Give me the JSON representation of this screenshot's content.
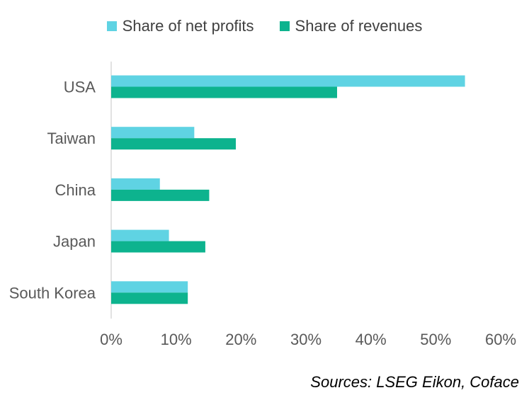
{
  "chart_data": {
    "type": "bar",
    "orientation": "horizontal",
    "categories": [
      "USA",
      "Taiwan",
      "China",
      "Japan",
      "South Korea"
    ],
    "series": [
      {
        "name": "Share of net profits",
        "color": "#5fd3e3",
        "values": [
          54.5,
          12.8,
          7.5,
          8.9,
          11.8
        ]
      },
      {
        "name": "Share of revenues",
        "color": "#0db38e",
        "values": [
          34.8,
          19.2,
          15.1,
          14.5,
          11.8
        ]
      }
    ],
    "x_ticks": [
      "0%",
      "10%",
      "20%",
      "30%",
      "40%",
      "50%",
      "60%"
    ],
    "xlim": [
      0,
      60
    ],
    "grid": false,
    "legend_position": "top"
  },
  "source_text": "Sources: LSEG Eikon, Coface"
}
